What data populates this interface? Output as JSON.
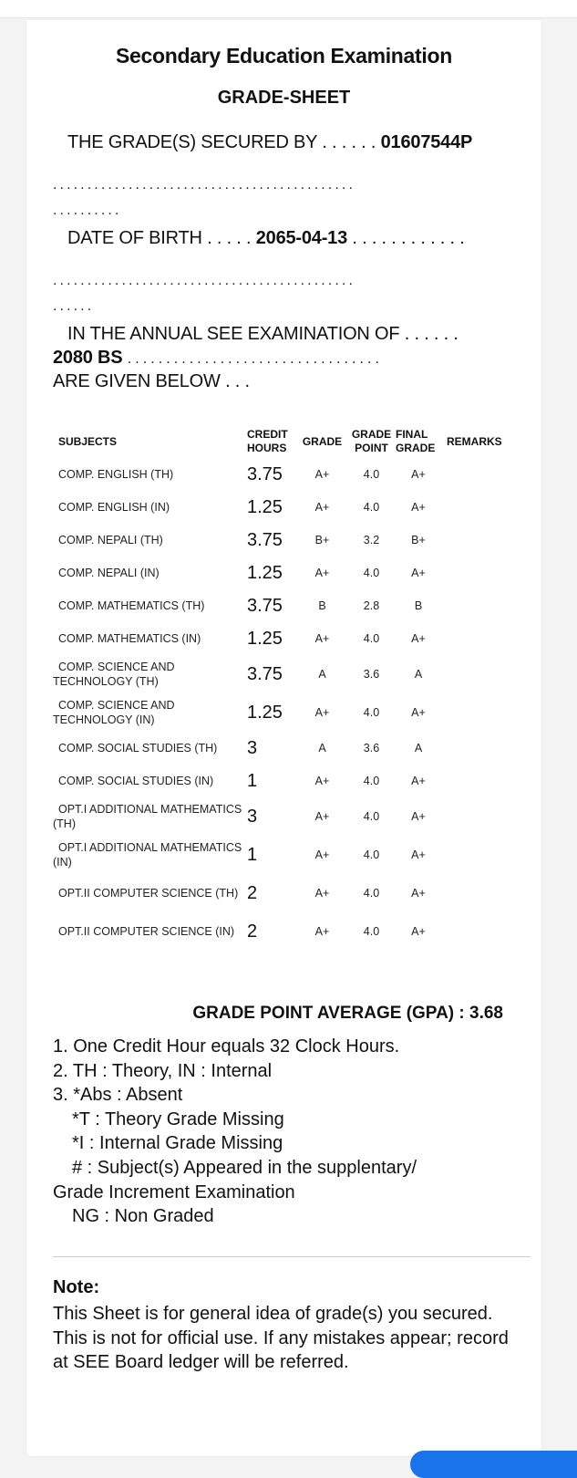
{
  "header": {
    "title": "Secondary Education Examination",
    "subtitle": "GRADE-SHEET"
  },
  "student": {
    "secured_by_label": "THE GRADE(S) SECURED BY",
    "leader": ". . . . . .",
    "symbol": "01607544P",
    "dob_label": "DATE OF BIRTH",
    "dob_leader": ". . . . .",
    "dob": "2065-04-13",
    "dob_trail": ". . . . . . . . . . . .",
    "dots_full": "............................................",
    "dots_short1": "..........",
    "dots_short2": "......",
    "exam_label": "IN THE ANNUAL SEE EXAMINATION OF",
    "exam_leader": ". . . . . .",
    "year": "2080 BS",
    "year_trail": ". . . . . . . . . . . . . . . . . . . . . . . . . . . . . . . . .",
    "given_below": "ARE GIVEN BELOW . . ."
  },
  "table": {
    "headers": {
      "subjects": "SUBJECTS",
      "credit_1": "CREDIT",
      "credit_2": "HOURS",
      "grade": "GRADE",
      "gp_1": "GRADE",
      "gp_2": "POINT",
      "fg_1": "FINAL",
      "fg_2": "GRADE",
      "remarks": "REMARKS"
    },
    "rows": [
      {
        "subject": "COMP. ENGLISH (TH)",
        "credit": "3.75",
        "grade": "A+",
        "point": "4.0",
        "final": "A+",
        "remarks": ""
      },
      {
        "subject": "COMP. ENGLISH (IN)",
        "credit": "1.25",
        "grade": "A+",
        "point": "4.0",
        "final": "A+",
        "remarks": ""
      },
      {
        "subject": "COMP. NEPALI (TH)",
        "credit": "3.75",
        "grade": "B+",
        "point": "3.2",
        "final": "B+",
        "remarks": ""
      },
      {
        "subject": "COMP. NEPALI (IN)",
        "credit": "1.25",
        "grade": "A+",
        "point": "4.0",
        "final": "A+",
        "remarks": ""
      },
      {
        "subject": "COMP. MATHEMATICS (TH)",
        "credit": "3.75",
        "grade": "B",
        "point": "2.8",
        "final": "B",
        "remarks": ""
      },
      {
        "subject": "COMP. MATHEMATICS (IN)",
        "credit": "1.25",
        "grade": "A+",
        "point": "4.0",
        "final": "A+",
        "remarks": ""
      },
      {
        "subject": "COMP. SCIENCE AND TECHNOLOGY (TH)",
        "credit": "3.75",
        "grade": "A",
        "point": "3.6",
        "final": "A",
        "remarks": ""
      },
      {
        "subject": "COMP. SCIENCE AND TECHNOLOGY (IN)",
        "credit": "1.25",
        "grade": "A+",
        "point": "4.0",
        "final": "A+",
        "remarks": ""
      },
      {
        "subject": "COMP. SOCIAL STUDIES (TH)",
        "credit": "3",
        "grade": "A",
        "point": "3.6",
        "final": "A",
        "remarks": ""
      },
      {
        "subject": "COMP. SOCIAL STUDIES (IN)",
        "credit": "1",
        "grade": "A+",
        "point": "4.0",
        "final": "A+",
        "remarks": ""
      },
      {
        "subject": "OPT.I ADDITIONAL MATHEMATICS (TH)",
        "credit": "3",
        "grade": "A+",
        "point": "4.0",
        "final": "A+",
        "remarks": ""
      },
      {
        "subject": "OPT.I ADDITIONAL MATHEMATICS (IN)",
        "credit": "1",
        "grade": "A+",
        "point": "4.0",
        "final": "A+",
        "remarks": ""
      },
      {
        "subject": "OPT.II COMPUTER SCIENCE (TH)",
        "credit": "2",
        "grade": "A+",
        "point": "4.0",
        "final": "A+",
        "remarks": ""
      },
      {
        "subject": "OPT.II COMPUTER SCIENCE (IN)",
        "credit": "2",
        "grade": "A+",
        "point": "4.0",
        "final": "A+",
        "remarks": ""
      }
    ]
  },
  "gpa": {
    "label": "GRADE POINT AVERAGE (GPA) :",
    "value": "3.68"
  },
  "legend": [
    "1. One Credit Hour equals 32 Clock Hours.",
    "2. TH : Theory, IN : Internal",
    "3. *Abs : Absent",
    "*T : Theory Grade Missing",
    "*I : Internal Grade Missing",
    "# : Subject(s) Appeared in the supplentary/",
    "Grade Increment Examination",
    "NG : Non Graded"
  ],
  "note": {
    "heading": "Note:",
    "text": "This Sheet is for general idea of grade(s) you secured. This is not for official use. If any mistakes appear; record at SEE Board ledger will be referred."
  }
}
